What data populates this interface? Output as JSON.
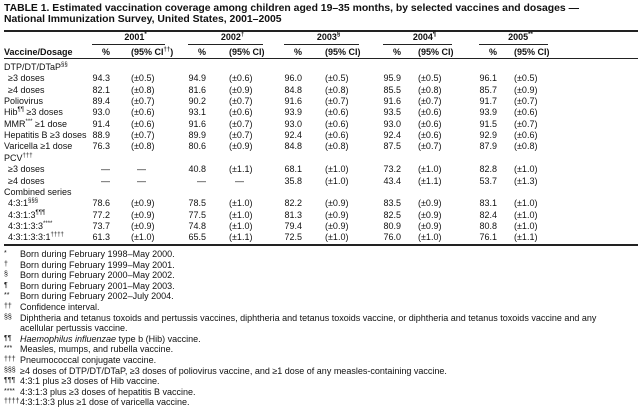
{
  "title": {
    "line1": "TABLE 1. Estimated vaccination coverage among children aged 19–35 months, by selected vaccines and dosages —",
    "line2": "National Immunization Survey, United States, 2001–2005"
  },
  "columns": {
    "stub": "Vaccine/Dosage",
    "years": [
      {
        "year": "2001",
        "mark": "*",
        "pct": "%",
        "ci": "(95% CI",
        "ci_mark": "††",
        "ci_close": ")"
      },
      {
        "year": "2002",
        "mark": "†",
        "pct": "%",
        "ci": "(95% CI)",
        "ci_mark": "",
        "ci_close": ""
      },
      {
        "year": "2003",
        "mark": "§",
        "pct": "%",
        "ci": "(95% CI)",
        "ci_mark": "",
        "ci_close": ""
      },
      {
        "year": "2004",
        "mark": "¶",
        "pct": "%",
        "ci": "(95% CI)",
        "ci_mark": "",
        "ci_close": ""
      },
      {
        "year": "2005",
        "mark": "**",
        "pct": "%",
        "ci": "(95% CI)",
        "ci_mark": "",
        "ci_close": ""
      }
    ]
  },
  "rows": [
    {
      "label": "DTP/DT/DTaP",
      "sup": "§§",
      "after": "",
      "indent": false,
      "values": []
    },
    {
      "label": "≥3 doses",
      "sup": "",
      "after": "",
      "indent": true,
      "values": [
        [
          "94.3",
          "(±0.5)"
        ],
        [
          "94.9",
          "(±0.6)"
        ],
        [
          "96.0",
          "(±0.5)"
        ],
        [
          "95.9",
          "(±0.5)"
        ],
        [
          "96.1",
          "(±0.5)"
        ]
      ]
    },
    {
      "label": "≥4 doses",
      "sup": "",
      "after": "",
      "indent": true,
      "values": [
        [
          "82.1",
          "(±0.8)"
        ],
        [
          "81.6",
          "(±0.9)"
        ],
        [
          "84.8",
          "(±0.8)"
        ],
        [
          "85.5",
          "(±0.8)"
        ],
        [
          "85.7",
          "(±0.9)"
        ]
      ]
    },
    {
      "label": "Poliovirus",
      "sup": "",
      "after": "",
      "indent": false,
      "values": [
        [
          "89.4",
          "(±0.7)"
        ],
        [
          "90.2",
          "(±0.7)"
        ],
        [
          "91.6",
          "(±0.7)"
        ],
        [
          "91.6",
          "(±0.7)"
        ],
        [
          "91.7",
          "(±0.7)"
        ]
      ]
    },
    {
      "label": "Hib",
      "sup": "¶¶",
      "after": " ≥3 doses",
      "indent": false,
      "values": [
        [
          "93.0",
          "(±0.6)"
        ],
        [
          "93.1",
          "(±0.6)"
        ],
        [
          "93.9",
          "(±0.6)"
        ],
        [
          "93.5",
          "(±0.6)"
        ],
        [
          "93.9",
          "(±0.6)"
        ]
      ]
    },
    {
      "label": "MMR",
      "sup": "***",
      "after": " ≥1 dose",
      "indent": false,
      "values": [
        [
          "91.4",
          "(±0.6)"
        ],
        [
          "91.6",
          "(±0.7)"
        ],
        [
          "93.0",
          "(±0.6)"
        ],
        [
          "93.0",
          "(±0.6)"
        ],
        [
          "91.5",
          "(±0.7)"
        ]
      ]
    },
    {
      "label": "Hepatitis B ≥3 doses",
      "sup": "",
      "after": "",
      "indent": false,
      "values": [
        [
          "88.9",
          "(±0.7)"
        ],
        [
          "89.9",
          "(±0.7)"
        ],
        [
          "92.4",
          "(±0.6)"
        ],
        [
          "92.4",
          "(±0.6)"
        ],
        [
          "92.9",
          "(±0.6)"
        ]
      ]
    },
    {
      "label": "Varicella ≥1 dose",
      "sup": "",
      "after": "",
      "indent": false,
      "values": [
        [
          "76.3",
          "(±0.8)"
        ],
        [
          "80.6",
          "(±0.9)"
        ],
        [
          "84.8",
          "(±0.8)"
        ],
        [
          "87.5",
          "(±0.7)"
        ],
        [
          "87.9",
          "(±0.8)"
        ]
      ]
    },
    {
      "label": "PCV",
      "sup": "†††",
      "after": "",
      "indent": false,
      "values": []
    },
    {
      "label": "≥3 doses",
      "sup": "",
      "after": "",
      "indent": true,
      "values": [
        [
          "—",
          "—"
        ],
        [
          "40.8",
          "(±1.1)"
        ],
        [
          "68.1",
          "(±1.0)"
        ],
        [
          "73.2",
          "(±1.0)"
        ],
        [
          "82.8",
          "(±1.0)"
        ]
      ]
    },
    {
      "label": "≥4 doses",
      "sup": "",
      "after": "",
      "indent": true,
      "values": [
        [
          "—",
          "—"
        ],
        [
          "—",
          "—"
        ],
        [
          "35.8",
          "(±1.0)"
        ],
        [
          "43.4",
          "(±1.1)"
        ],
        [
          "53.7",
          "(±1.3)"
        ]
      ]
    },
    {
      "label": "Combined series",
      "sup": "",
      "after": "",
      "indent": false,
      "values": []
    },
    {
      "label": "4:3:1",
      "sup": "§§§",
      "after": "",
      "indent": true,
      "values": [
        [
          "78.6",
          "(±0.9)"
        ],
        [
          "78.5",
          "(±1.0)"
        ],
        [
          "82.2",
          "(±0.9)"
        ],
        [
          "83.5",
          "(±0.9)"
        ],
        [
          "83.1",
          "(±1.0)"
        ]
      ]
    },
    {
      "label": "4:3:1:3",
      "sup": "¶¶¶",
      "after": "",
      "indent": true,
      "values": [
        [
          "77.2",
          "(±0.9)"
        ],
        [
          "77.5",
          "(±1.0)"
        ],
        [
          "81.3",
          "(±0.9)"
        ],
        [
          "82.5",
          "(±0.9)"
        ],
        [
          "82.4",
          "(±1.0)"
        ]
      ]
    },
    {
      "label": "4:3:1:3:3",
      "sup": "****",
      "after": "",
      "indent": true,
      "values": [
        [
          "73.7",
          "(±0.9)"
        ],
        [
          "74.8",
          "(±1.0)"
        ],
        [
          "79.4",
          "(±0.9)"
        ],
        [
          "80.9",
          "(±0.9)"
        ],
        [
          "80.8",
          "(±1.0)"
        ]
      ]
    },
    {
      "label": "4:3:1:3:3:1",
      "sup": "††††",
      "after": "",
      "indent": true,
      "values": [
        [
          "61.3",
          "(±1.0)"
        ],
        [
          "65.5",
          "(±1.1)"
        ],
        [
          "72.5",
          "(±1.0)"
        ],
        [
          "76.0",
          "(±1.0)"
        ],
        [
          "76.1",
          "(±1.1)"
        ]
      ]
    }
  ],
  "footnotes": [
    {
      "mark": "*",
      "text": "Born during February 1998–May 2000."
    },
    {
      "mark": "†",
      "text": "Born during February 1999–May 2001."
    },
    {
      "mark": "§",
      "text": "Born during February 2000–May 2002."
    },
    {
      "mark": "¶",
      "text": "Born during February 2001–May 2003."
    },
    {
      "mark": "**",
      "text": "Born during February 2002–July 2004."
    },
    {
      "mark": "††",
      "text": "Confidence interval."
    },
    {
      "mark": "§§",
      "text": "Diphtheria and tetanus toxoids and pertussis vaccines, diphtheria and tetanus toxoids vaccine, or diphtheria and tetanus toxoids vaccine and any"
    },
    {
      "mark": "",
      "text": "acellular pertussis vaccine."
    },
    {
      "mark": "¶¶",
      "text": "type b (Hib) vaccine.",
      "italic": "Haemophilus influenzae"
    },
    {
      "mark": "***",
      "text": "Measles, mumps, and rubella vaccine."
    },
    {
      "mark": "†††",
      "text": "Pneumococcal conjugate vaccine."
    },
    {
      "mark": "§§§",
      "text": "≥4 doses of DTP/DT/DTaP, ≥3 doses of poliovirus vaccine, and ≥1 dose of any measles-containing vaccine."
    },
    {
      "mark": "¶¶¶",
      "text": "4:3:1 plus ≥3 doses of Hib vaccine."
    },
    {
      "mark": "****",
      "text": "4:3:1:3 plus ≥3 doses of hepatitis B vaccine."
    },
    {
      "mark": "††††",
      "text": "4:3:1:3:3 plus ≥1 dose of varicella vaccine."
    }
  ]
}
